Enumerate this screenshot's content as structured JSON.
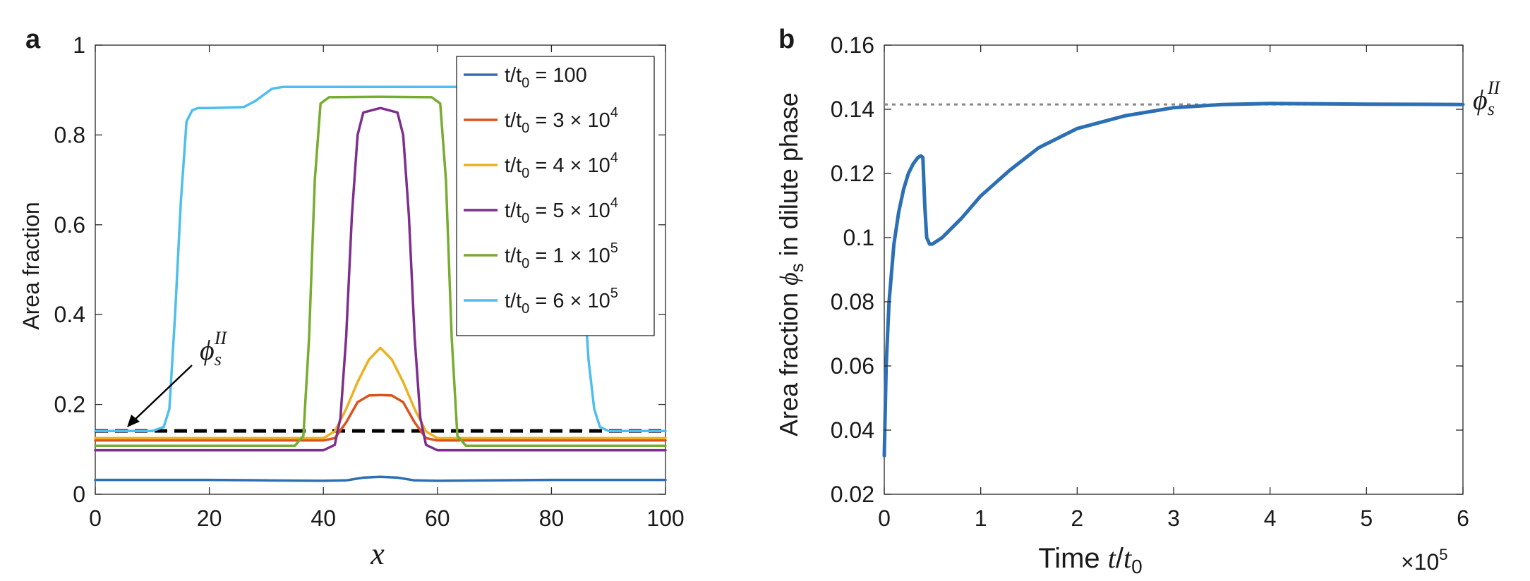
{
  "chart_data": [
    {
      "panel_label": "a",
      "type": "line",
      "xlabel": "x",
      "ylabel": "Area fraction",
      "xlim": [
        0,
        100
      ],
      "ylim": [
        0,
        1
      ],
      "xticks": [
        0,
        20,
        40,
        60,
        80,
        100
      ],
      "yticks": [
        0,
        0.2,
        0.4,
        0.6,
        0.8,
        1
      ],
      "ytick_labels": [
        "0",
        "0.2",
        "0.4",
        "0.6",
        "0.8",
        "1"
      ],
      "legend_position": "top-right",
      "annotation": {
        "text": "ϕ",
        "sub": "s",
        "sup": "II",
        "value": 0.141
      },
      "reference_line": {
        "y": 0.141,
        "style": "dashed",
        "color": "#000000"
      },
      "series": [
        {
          "name": "t/t0 = 100",
          "legend": {
            "pre": "t/t",
            "sub": "0",
            "mid": " = 100",
            "sup": ""
          },
          "color": "#2c6fb5",
          "x": [
            0,
            10,
            20,
            30,
            40,
            44,
            47,
            50,
            53,
            56,
            60,
            70,
            80,
            90,
            100
          ],
          "y": [
            0.032,
            0.032,
            0.032,
            0.031,
            0.03,
            0.031,
            0.037,
            0.039,
            0.037,
            0.031,
            0.03,
            0.031,
            0.032,
            0.032,
            0.032
          ]
        },
        {
          "name": "t/t0 = 3 × 10^4",
          "legend": {
            "pre": "t/t",
            "sub": "0",
            "mid": " = 3 × 10",
            "sup": "4"
          },
          "color": "#d9531e",
          "x": [
            0,
            20,
            40,
            42,
            44,
            46,
            48,
            50,
            52,
            54,
            56,
            58,
            60,
            80,
            100
          ],
          "y": [
            0.12,
            0.12,
            0.12,
            0.125,
            0.16,
            0.205,
            0.22,
            0.221,
            0.22,
            0.205,
            0.16,
            0.125,
            0.12,
            0.12,
            0.12
          ]
        },
        {
          "name": "t/t0 = 4 × 10^4",
          "legend": {
            "pre": "t/t",
            "sub": "0",
            "mid": " = 4 × 10",
            "sup": "4"
          },
          "color": "#edb120",
          "x": [
            0,
            20,
            40,
            42,
            44,
            46,
            48,
            50,
            52,
            54,
            56,
            58,
            60,
            80,
            100
          ],
          "y": [
            0.125,
            0.125,
            0.125,
            0.14,
            0.19,
            0.25,
            0.3,
            0.326,
            0.3,
            0.25,
            0.19,
            0.14,
            0.125,
            0.125,
            0.125
          ]
        },
        {
          "name": "t/t0 = 5 × 10^4",
          "legend": {
            "pre": "t/t",
            "sub": "0",
            "mid": " = 5 × 10",
            "sup": "4"
          },
          "color": "#7e2f8e",
          "x": [
            0,
            20,
            40,
            42,
            43,
            44,
            45,
            46,
            47,
            50,
            53,
            54,
            55,
            56,
            57,
            58,
            60,
            80,
            100
          ],
          "y": [
            0.098,
            0.098,
            0.098,
            0.11,
            0.17,
            0.35,
            0.62,
            0.8,
            0.85,
            0.86,
            0.85,
            0.8,
            0.62,
            0.35,
            0.17,
            0.11,
            0.098,
            0.098,
            0.098
          ]
        },
        {
          "name": "t/t0 = 1 × 10^5",
          "legend": {
            "pre": "t/t",
            "sub": "0",
            "mid": " = 1 × 10",
            "sup": "5"
          },
          "color": "#77ac30",
          "x": [
            0,
            20,
            35,
            36.5,
            37.5,
            38.5,
            39.5,
            41,
            50,
            59,
            60.5,
            61.5,
            62.5,
            63.5,
            65,
            80,
            100
          ],
          "y": [
            0.108,
            0.108,
            0.108,
            0.13,
            0.35,
            0.7,
            0.87,
            0.884,
            0.885,
            0.884,
            0.87,
            0.7,
            0.35,
            0.13,
            0.108,
            0.108,
            0.108
          ]
        },
        {
          "name": "t/t0 = 6 × 10^5",
          "legend": {
            "pre": "t/t",
            "sub": "0",
            "mid": " = 6 × 10",
            "sup": "5"
          },
          "color": "#4dbeee",
          "x": [
            0,
            10,
            12,
            13,
            14,
            15,
            16,
            17,
            18,
            20,
            26,
            28,
            31,
            33,
            50,
            60,
            76,
            84,
            84.8,
            85.5,
            86.5,
            87.5,
            88.5,
            90,
            100
          ],
          "y": [
            0.141,
            0.141,
            0.15,
            0.19,
            0.4,
            0.65,
            0.83,
            0.855,
            0.86,
            0.86,
            0.862,
            0.875,
            0.903,
            0.907,
            0.907,
            0.907,
            0.907,
            0.907,
            0.86,
            0.5,
            0.3,
            0.19,
            0.15,
            0.141,
            0.141
          ]
        }
      ]
    },
    {
      "panel_label": "b",
      "type": "line",
      "xlabel_prefix": "Time ",
      "xlabel_var": "t",
      "xlabel_div": "/",
      "xlabel_var2": "t",
      "xlabel_sub": "0",
      "ylabel_pre": "Area fraction ",
      "ylabel_phi": "ϕ",
      "ylabel_sub": "s",
      "ylabel_post": " in dilute phase",
      "xlim": [
        0,
        6
      ],
      "ylim": [
        0.02,
        0.16
      ],
      "xticks": [
        0,
        1,
        2,
        3,
        4,
        5,
        6
      ],
      "yticks": [
        0.02,
        0.04,
        0.06,
        0.08,
        0.1,
        0.12,
        0.14,
        0.16
      ],
      "ytick_labels": [
        "0.02",
        "0.04",
        "0.06",
        "0.08",
        "0.1",
        "0.12",
        "0.14",
        "0.16"
      ],
      "x_multiplier": {
        "base": "×10",
        "exp": "5"
      },
      "annotation": {
        "text": "ϕ",
        "sub": "s",
        "sup": "II",
        "value": 0.1415
      },
      "reference_line": {
        "y": 0.1415,
        "style": "dotted",
        "color": "#888888"
      },
      "series": [
        {
          "name": "",
          "color": "#2c6fb5",
          "x": [
            0.0,
            0.02,
            0.05,
            0.1,
            0.15,
            0.2,
            0.25,
            0.3,
            0.35,
            0.38,
            0.4,
            0.42,
            0.44,
            0.47,
            0.5,
            0.6,
            0.8,
            1.0,
            1.3,
            1.6,
            2.0,
            2.5,
            3.0,
            3.5,
            4.0,
            5.0,
            6.0
          ],
          "y": [
            0.032,
            0.06,
            0.08,
            0.098,
            0.108,
            0.115,
            0.12,
            0.123,
            0.125,
            0.1255,
            0.125,
            0.11,
            0.1,
            0.098,
            0.098,
            0.1,
            0.106,
            0.113,
            0.121,
            0.128,
            0.134,
            0.138,
            0.1405,
            0.1415,
            0.1418,
            0.1416,
            0.1415
          ]
        }
      ]
    }
  ]
}
